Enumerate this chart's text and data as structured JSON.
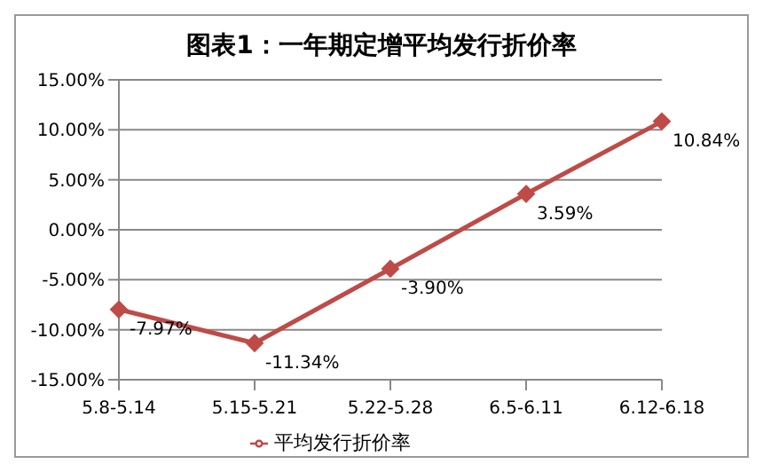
{
  "chart_data": {
    "type": "line",
    "title": "图表1：一年期定增平均发行折价率",
    "categories": [
      "5.8-5.14",
      "5.15-5.21",
      "5.22-5.28",
      "6.5-6.11",
      "6.12-6.18"
    ],
    "series": [
      {
        "name": "平均发行折价率",
        "color": "#be4b48",
        "values": [
          -7.97,
          -11.34,
          -3.9,
          3.59,
          10.84
        ],
        "value_labels": [
          "-7.97%",
          "-11.34%",
          "-3.90%",
          "3.59%",
          "10.84%"
        ]
      }
    ],
    "ylim": [
      -15,
      15
    ],
    "yticks": [
      {
        "value": -15,
        "label": "-15.00%"
      },
      {
        "value": -10,
        "label": "-10.00%"
      },
      {
        "value": -5,
        "label": "-5.00%"
      },
      {
        "value": 0,
        "label": "0.00%"
      },
      {
        "value": 5,
        "label": "5.00%"
      },
      {
        "value": 10,
        "label": "10.00%"
      },
      {
        "value": 15,
        "label": "15.00%"
      }
    ],
    "grid": "y",
    "legend": "bottom",
    "marker": "diamond",
    "line_style": "solid"
  }
}
